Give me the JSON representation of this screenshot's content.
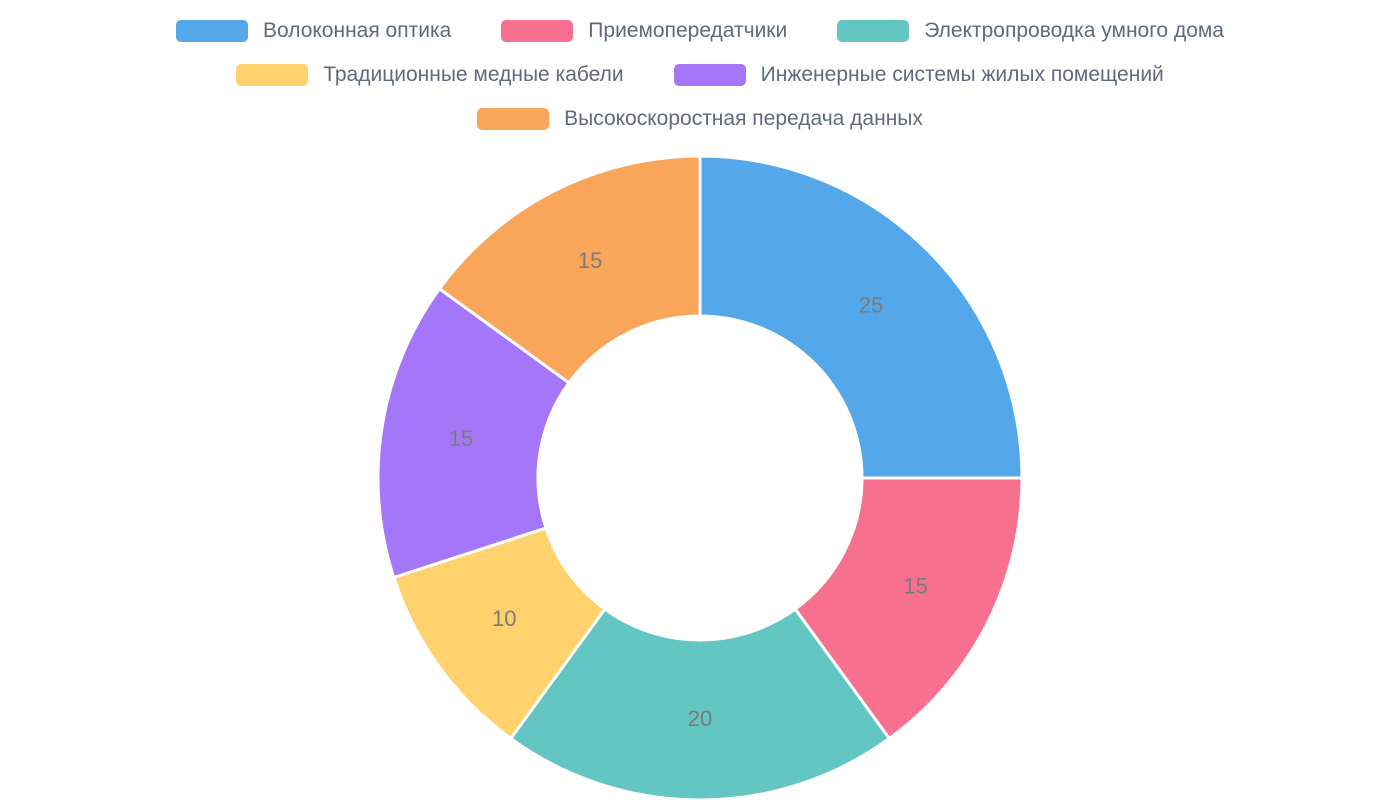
{
  "chart_data": {
    "type": "pie",
    "variant": "donut",
    "labels": [
      "Волоконная оптика",
      "Приемопередатчики",
      "Электропроводка умного дома",
      "Традиционные медные кабели",
      "Инженерные системы жилых помещений",
      "Высокоскоростная передача данных"
    ],
    "values": [
      25,
      15,
      20,
      10,
      15,
      15
    ],
    "colors": [
      "#54a7e8",
      "#f8708f",
      "#63c6c2",
      "#ffd26e",
      "#a377f7",
      "#faa65a"
    ],
    "value_labels": [
      "25",
      "15",
      "20",
      "10",
      "15",
      "15"
    ],
    "start_angle_deg": 0,
    "direction": "clockwise",
    "legend_position": "top",
    "legend_rows": [
      [
        0,
        1,
        2
      ],
      [
        3,
        4
      ],
      [
        5
      ]
    ],
    "title": "",
    "legend_text_color": "#5d6b7d",
    "value_label_color": "#7b7b7b",
    "background_color": "#ffffff"
  }
}
